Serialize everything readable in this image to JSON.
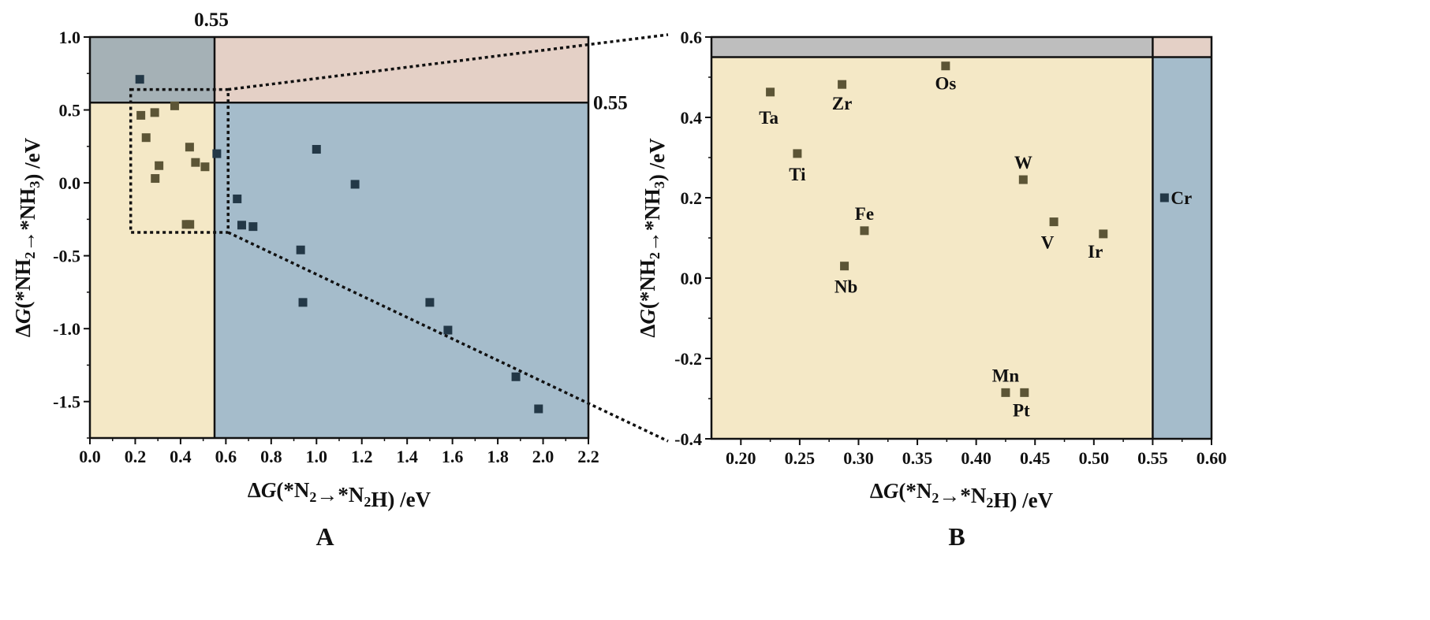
{
  "colors": {
    "region_nh3_ok": "#f4e8c6",
    "region_blue": "#a5bccb",
    "region_pink": "#e4d0c6",
    "region_gray_A": "#a5b1b6",
    "region_gray_B": "#bebebe",
    "point_olive": "#5c5536",
    "point_navy": "#233847",
    "axis": "#111111"
  },
  "chart_data": [
    {
      "type": "scatter",
      "panel": "A",
      "xlabel": "ΔG(*N₂→*N₂H) /eV",
      "ylabel": "ΔG(*NH₂→*NH₃) /eV",
      "xlim": [
        0.0,
        2.2
      ],
      "ylim": [
        -1.75,
        1.0
      ],
      "xticks": [
        "0.0",
        "0.2",
        "0.4",
        "0.6",
        "0.8",
        "1.0",
        "1.2",
        "1.4",
        "1.6",
        "1.8",
        "2.0",
        "2.2"
      ],
      "yticks": [
        "1.0",
        "0.5",
        "0.0",
        "-0.5",
        "-1.0",
        "-1.5"
      ],
      "thresholds": {
        "x": 0.55,
        "y": 0.55,
        "x_label": "0.55",
        "y_label": "0.55"
      },
      "zoom_box": {
        "x": [
          0.18,
          0.61
        ],
        "y": [
          -0.34,
          0.64
        ]
      },
      "series": [
        {
          "group": "olive",
          "points": [
            [
              0.225,
              0.463
            ],
            [
              0.248,
              0.31
            ],
            [
              0.286,
              0.482
            ],
            [
              0.374,
              0.528
            ],
            [
              0.288,
              0.03
            ],
            [
              0.305,
              0.118
            ],
            [
              0.44,
              0.245
            ],
            [
              0.466,
              0.14
            ],
            [
              0.508,
              0.11
            ],
            [
              0.425,
              -0.285
            ],
            [
              0.441,
              -0.285
            ]
          ]
        },
        {
          "group": "navy",
          "points": [
            [
              0.22,
              0.71
            ],
            [
              0.56,
              0.2
            ],
            [
              0.65,
              -0.11
            ],
            [
              0.67,
              -0.29
            ],
            [
              0.72,
              -0.3
            ],
            [
              1.0,
              0.23
            ],
            [
              1.17,
              -0.01
            ],
            [
              0.93,
              -0.46
            ],
            [
              0.94,
              -0.82
            ],
            [
              1.5,
              -0.82
            ],
            [
              1.58,
              -1.01
            ],
            [
              1.88,
              -1.33
            ],
            [
              1.98,
              -1.55
            ]
          ]
        }
      ]
    },
    {
      "type": "scatter",
      "panel": "B",
      "xlabel": "ΔG(*N₂→*N₂H) /eV",
      "ylabel": "ΔG(*NH₂→*NH₃) /eV",
      "xlim": [
        0.175,
        0.6
      ],
      "ylim": [
        -0.4,
        0.6
      ],
      "xticks": [
        "0.20",
        "0.25",
        "0.30",
        "0.35",
        "0.40",
        "0.45",
        "0.50",
        "0.55",
        "0.60"
      ],
      "yticks": [
        "0.6",
        "0.4",
        "0.2",
        "0.0",
        "-0.2",
        "-0.4"
      ],
      "points": [
        {
          "label": "Ta",
          "x": 0.225,
          "y": 0.463,
          "group": "olive"
        },
        {
          "label": "Ti",
          "x": 0.248,
          "y": 0.31,
          "group": "olive"
        },
        {
          "label": "Zr",
          "x": 0.286,
          "y": 0.482,
          "group": "olive"
        },
        {
          "label": "Os",
          "x": 0.374,
          "y": 0.528,
          "group": "olive"
        },
        {
          "label": "Nb",
          "x": 0.288,
          "y": 0.03,
          "group": "olive"
        },
        {
          "label": "Fe",
          "x": 0.305,
          "y": 0.118,
          "group": "olive"
        },
        {
          "label": "W",
          "x": 0.44,
          "y": 0.245,
          "group": "olive"
        },
        {
          "label": "V",
          "x": 0.466,
          "y": 0.14,
          "group": "olive"
        },
        {
          "label": "Ir",
          "x": 0.508,
          "y": 0.11,
          "group": "olive"
        },
        {
          "label": "Mn",
          "x": 0.425,
          "y": -0.285,
          "group": "olive"
        },
        {
          "label": "Pt",
          "x": 0.441,
          "y": -0.285,
          "group": "olive"
        },
        {
          "label": "Cr",
          "x": 0.56,
          "y": 0.2,
          "group": "navy"
        }
      ]
    }
  ]
}
